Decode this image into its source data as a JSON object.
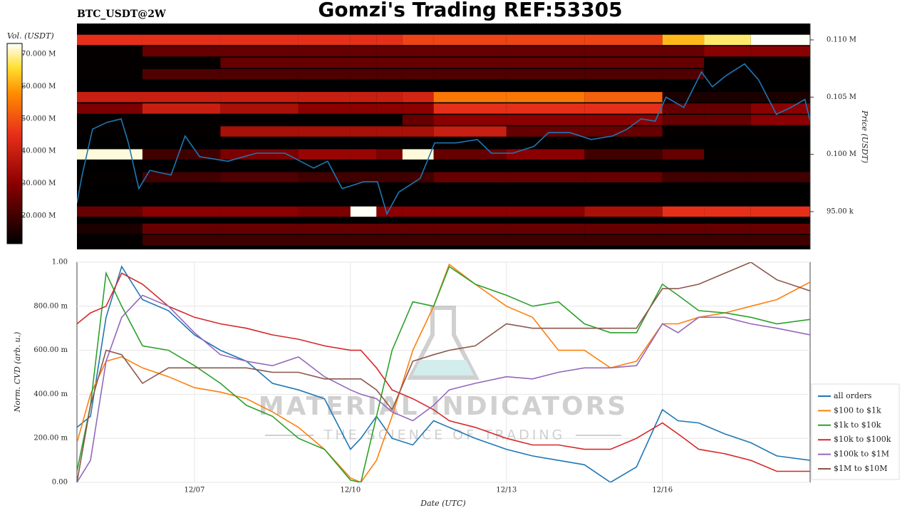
{
  "title": "Gomzi's Trading REF:53305",
  "watermark": {
    "brand": "MATERIAL INDICATORS",
    "slogan": "THE SCIENCE OF TRADING"
  },
  "chart_data": [
    {
      "type": "heatmap",
      "subtitle": "BTC_USDT@2W",
      "y_label": "Price (USDT)",
      "xlim": [
        4.74,
        18.84
      ],
      "ylim": [
        91700,
        111430
      ],
      "yticks": [
        {
          "value": 95000,
          "label": "95.00 k"
        },
        {
          "value": 100000,
          "label": "0.100 M"
        },
        {
          "value": 105000,
          "label": "0.105 M"
        },
        {
          "value": 110000,
          "label": "0.110 M"
        }
      ],
      "time_edges": [
        4.74,
        6,
        7.5,
        9,
        10,
        10.5,
        11,
        11.6,
        13,
        14.5,
        16,
        16.8,
        17.7,
        18.84
      ],
      "levels": [
        110000,
        109000,
        108000,
        107000,
        105000,
        104000,
        103000,
        102000,
        100000,
        98000,
        95000,
        93500,
        92500
      ],
      "volumes": [
        [
          45000000,
          45000000,
          45000000,
          45000000,
          45000000,
          45000000,
          48000000,
          48000000,
          48000000,
          48000000,
          62000000,
          68000000,
          73000000
        ],
        [
          12000000,
          25000000,
          25000000,
          25000000,
          25000000,
          25000000,
          25000000,
          25000000,
          25000000,
          25000000,
          25000000,
          30000000,
          30000000
        ],
        [
          12000000,
          12000000,
          25000000,
          25000000,
          25000000,
          25000000,
          25000000,
          25000000,
          25000000,
          25000000,
          25000000,
          12000000,
          12000000
        ],
        [
          12000000,
          22000000,
          22000000,
          22000000,
          22000000,
          22000000,
          22000000,
          22000000,
          22000000,
          22000000,
          22000000,
          12000000,
          12000000
        ],
        [
          40000000,
          40000000,
          40000000,
          40000000,
          40000000,
          40000000,
          42000000,
          55000000,
          55000000,
          52000000,
          15000000,
          15000000,
          15000000
        ],
        [
          28000000,
          40000000,
          35000000,
          30000000,
          30000000,
          30000000,
          30000000,
          45000000,
          45000000,
          45000000,
          25000000,
          25000000,
          30000000
        ],
        [
          12000000,
          12000000,
          12000000,
          12000000,
          12000000,
          12000000,
          25000000,
          30000000,
          30000000,
          30000000,
          25000000,
          25000000,
          30000000
        ],
        [
          12000000,
          12000000,
          35000000,
          35000000,
          35000000,
          35000000,
          35000000,
          40000000,
          25000000,
          25000000,
          12000000,
          12000000,
          12000000
        ],
        [
          72000000,
          20000000,
          28000000,
          32000000,
          32000000,
          28000000,
          72000000,
          25000000,
          30000000,
          20000000,
          25000000,
          12000000,
          12000000
        ],
        [
          12000000,
          20000000,
          22000000,
          20000000,
          20000000,
          20000000,
          20000000,
          25000000,
          25000000,
          25000000,
          20000000,
          20000000,
          20000000
        ],
        [
          25000000,
          30000000,
          30000000,
          28000000,
          73000000,
          30000000,
          30000000,
          30000000,
          30000000,
          35000000,
          45000000,
          45000000,
          45000000
        ],
        [
          15000000,
          25000000,
          25000000,
          25000000,
          25000000,
          25000000,
          25000000,
          25000000,
          25000000,
          25000000,
          25000000,
          25000000,
          25000000
        ],
        [
          12000000,
          20000000,
          20000000,
          20000000,
          20000000,
          20000000,
          20000000,
          20000000,
          20000000,
          20000000,
          20000000,
          20000000,
          20000000
        ]
      ],
      "colorbar": {
        "label": "Vol. (USDT)",
        "lim": [
          11400000,
          73300000
        ],
        "ticks": [
          {
            "value": 20000000,
            "label": "20.000 M"
          },
          {
            "value": 30000000,
            "label": "30.000 M"
          },
          {
            "value": 40000000,
            "label": "40.000 M"
          },
          {
            "value": 50000000,
            "label": "50.000 M"
          },
          {
            "value": 60000000,
            "label": "60.000 M"
          },
          {
            "value": 70000000,
            "label": "70.000 M"
          }
        ]
      },
      "price": {
        "color": "#1f77b4",
        "x": [
          4.74,
          4.84,
          5.04,
          5.32,
          5.59,
          5.73,
          5.93,
          6.14,
          6.55,
          6.82,
          7.1,
          7.64,
          8.19,
          8.74,
          9.29,
          9.56,
          9.84,
          10.25,
          10.52,
          10.7,
          10.93,
          11.34,
          11.62,
          12.03,
          12.44,
          12.71,
          13.12,
          13.53,
          13.81,
          14.22,
          14.63,
          15.04,
          15.32,
          15.59,
          15.86,
          16.07,
          16.41,
          16.75,
          16.96,
          17.23,
          17.58,
          17.85,
          18.19,
          18.47,
          18.74,
          18.84
        ],
        "values": [
          95750,
          98200,
          102200,
          102800,
          103100,
          101000,
          97000,
          98600,
          98200,
          101600,
          99800,
          99400,
          100100,
          100100,
          98800,
          99400,
          97000,
          97600,
          97600,
          94800,
          96700,
          97900,
          101000,
          101000,
          101300,
          100100,
          100100,
          100700,
          101900,
          101900,
          101300,
          101600,
          102200,
          103100,
          102900,
          105000,
          104100,
          107200,
          105900,
          106900,
          107900,
          106500,
          103500,
          104100,
          104800,
          102900
        ]
      }
    },
    {
      "type": "line",
      "x_label": "Date (UTC)",
      "y_label": "Norm. CVD (arb. u.)",
      "xlim": [
        4.74,
        18.84
      ],
      "xticks": [
        {
          "value": 7,
          "label": "12/07"
        },
        {
          "value": 10,
          "label": "12/10"
        },
        {
          "value": 13,
          "label": "12/13"
        },
        {
          "value": 16,
          "label": "12/16"
        }
      ],
      "ylim": [
        0,
        1
      ],
      "yticks": [
        {
          "value": 0,
          "label": "0.00"
        },
        {
          "value": 0.2,
          "label": "200.00 m"
        },
        {
          "value": 0.4,
          "label": "400.00 m"
        },
        {
          "value": 0.6,
          "label": "600.00 m"
        },
        {
          "value": 0.8,
          "label": "800.00 m"
        },
        {
          "value": 1,
          "label": "1.00"
        }
      ],
      "grid": true,
      "legend": "outside lower right",
      "x": [
        4.74,
        5.0,
        5.3,
        5.6,
        6.0,
        6.5,
        7.0,
        7.5,
        8.0,
        8.5,
        9.0,
        9.5,
        10.0,
        10.2,
        10.5,
        10.8,
        11.2,
        11.6,
        11.9,
        12.4,
        13.0,
        13.5,
        14.0,
        14.5,
        15.0,
        15.5,
        16.0,
        16.3,
        16.7,
        17.2,
        17.7,
        18.2,
        18.84
      ],
      "series": [
        {
          "name": "all orders",
          "color": "#1f77b4",
          "values": [
            0.25,
            0.3,
            0.75,
            0.98,
            0.83,
            0.78,
            0.67,
            0.6,
            0.55,
            0.45,
            0.42,
            0.38,
            0.15,
            0.2,
            0.3,
            0.2,
            0.17,
            0.28,
            0.25,
            0.2,
            0.15,
            0.12,
            0.1,
            0.08,
            0.0,
            0.07,
            0.33,
            0.28,
            0.27,
            0.22,
            0.18,
            0.12,
            0.1
          ]
        },
        {
          "name": "$100 to $1k",
          "color": "#ff7f0e",
          "values": [
            0.18,
            0.4,
            0.55,
            0.57,
            0.52,
            0.48,
            0.43,
            0.41,
            0.38,
            0.32,
            0.25,
            0.15,
            0.02,
            0.0,
            0.1,
            0.3,
            0.6,
            0.8,
            0.99,
            0.9,
            0.8,
            0.75,
            0.6,
            0.6,
            0.52,
            0.55,
            0.72,
            0.72,
            0.75,
            0.77,
            0.8,
            0.83,
            0.91
          ]
        },
        {
          "name": "$1k to $10k",
          "color": "#2ca02c",
          "values": [
            0.05,
            0.35,
            0.95,
            0.8,
            0.62,
            0.6,
            0.53,
            0.45,
            0.35,
            0.3,
            0.2,
            0.15,
            0.01,
            0.0,
            0.3,
            0.6,
            0.82,
            0.8,
            0.98,
            0.9,
            0.85,
            0.8,
            0.82,
            0.72,
            0.68,
            0.68,
            0.9,
            0.85,
            0.78,
            0.77,
            0.75,
            0.72,
            0.74
          ]
        },
        {
          "name": "$10k to $100k",
          "color": "#d62728",
          "values": [
            0.72,
            0.77,
            0.8,
            0.95,
            0.9,
            0.8,
            0.75,
            0.72,
            0.7,
            0.67,
            0.65,
            0.62,
            0.6,
            0.6,
            0.52,
            0.42,
            0.38,
            0.33,
            0.28,
            0.25,
            0.2,
            0.17,
            0.17,
            0.15,
            0.15,
            0.2,
            0.27,
            0.22,
            0.15,
            0.13,
            0.1,
            0.05,
            0.05
          ]
        },
        {
          "name": "$100k to $1M",
          "color": "#9467bd",
          "values": [
            0.0,
            0.1,
            0.55,
            0.75,
            0.85,
            0.8,
            0.68,
            0.58,
            0.55,
            0.53,
            0.57,
            0.48,
            0.42,
            0.4,
            0.38,
            0.32,
            0.28,
            0.35,
            0.42,
            0.45,
            0.48,
            0.47,
            0.5,
            0.52,
            0.52,
            0.53,
            0.72,
            0.68,
            0.75,
            0.75,
            0.72,
            0.7,
            0.67
          ]
        },
        {
          "name": "$1M to $10M",
          "color": "#8c564b",
          "values": [
            0.0,
            0.35,
            0.6,
            0.58,
            0.45,
            0.52,
            0.52,
            0.52,
            0.52,
            0.5,
            0.5,
            0.47,
            0.47,
            0.47,
            0.42,
            0.33,
            0.55,
            0.58,
            0.6,
            0.62,
            0.72,
            0.7,
            0.7,
            0.7,
            0.7,
            0.7,
            0.88,
            0.88,
            0.9,
            0.95,
            1.0,
            0.92,
            0.87
          ]
        }
      ]
    }
  ]
}
